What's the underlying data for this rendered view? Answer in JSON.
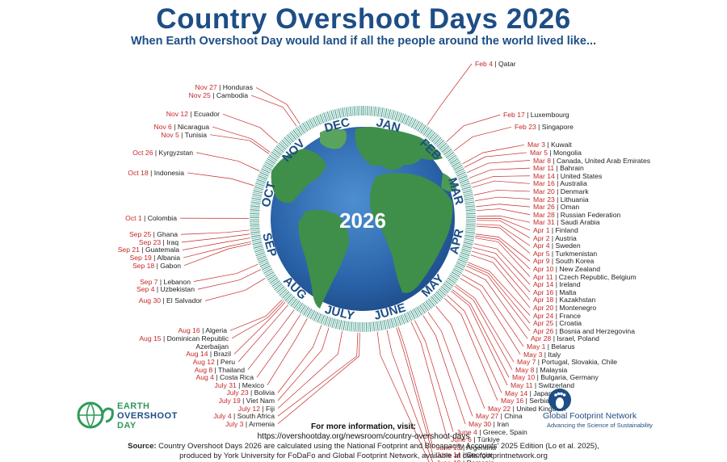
{
  "title": "Country Overshoot Days 2026",
  "subtitle": "When Earth Overshoot Day would land if all the people around the world lived like...",
  "center_year": "2026",
  "months": [
    "JAN",
    "FEB",
    "MAR",
    "APR",
    "MAY",
    "JUNE",
    "JULY",
    "AUG",
    "SEP",
    "OCT",
    "NOV",
    "DEC"
  ],
  "countries": [
    {
      "date": "Feb 4",
      "name": "Qatar",
      "day": 35
    },
    {
      "date": "Feb 17",
      "name": "Luxembourg",
      "day": 48
    },
    {
      "date": "Feb 23",
      "name": "Singapore",
      "day": 54
    },
    {
      "date": "Mar 3",
      "name": "Kuwait",
      "day": 62
    },
    {
      "date": "Mar 5",
      "name": "Mongolia",
      "day": 64
    },
    {
      "date": "Mar 8",
      "name": "Canada, United Arab Emirates",
      "day": 67
    },
    {
      "date": "Mar 11",
      "name": "Bahrain",
      "day": 70
    },
    {
      "date": "Mar 14",
      "name": "United States",
      "day": 73
    },
    {
      "date": "Mar 16",
      "name": "Australia",
      "day": 75
    },
    {
      "date": "Mar 20",
      "name": "Denmark",
      "day": 79
    },
    {
      "date": "Mar 23",
      "name": "Lithuania",
      "day": 82
    },
    {
      "date": "Mar 26",
      "name": "Oman",
      "day": 85
    },
    {
      "date": "Mar 28",
      "name": "Russian Federation",
      "day": 87
    },
    {
      "date": "Mar 31",
      "name": "Saudi Arabia",
      "day": 90
    },
    {
      "date": "Apr 1",
      "name": "Finland",
      "day": 91
    },
    {
      "date": "Apr 2",
      "name": "Austria",
      "day": 92
    },
    {
      "date": "Apr 4",
      "name": "Sweden",
      "day": 94
    },
    {
      "date": "Apr 5",
      "name": "Turkmenistan",
      "day": 95
    },
    {
      "date": "Apr 9",
      "name": "South Korea",
      "day": 99
    },
    {
      "date": "Apr 10",
      "name": "New Zealand",
      "day": 100
    },
    {
      "date": "Apr 11",
      "name": "Czech Republic, Belgium",
      "day": 101
    },
    {
      "date": "Apr 14",
      "name": "Ireland",
      "day": 104
    },
    {
      "date": "Apr 16",
      "name": "Malta",
      "day": 106
    },
    {
      "date": "Apr 18",
      "name": "Kazakhstan",
      "day": 108
    },
    {
      "date": "Apr 20",
      "name": "Montenegro",
      "day": 110
    },
    {
      "date": "Apr 24",
      "name": "France",
      "day": 114
    },
    {
      "date": "Apr 25",
      "name": "Croatia",
      "day": 115
    },
    {
      "date": "Apr 26",
      "name": "Bosnia and Herzegovina",
      "day": 116
    },
    {
      "date": "Apr 28",
      "name": "Israel, Poland",
      "day": 118
    },
    {
      "date": "May 1",
      "name": "Belarus",
      "day": 121
    },
    {
      "date": "May 3",
      "name": "Italy",
      "day": 123
    },
    {
      "date": "May 7",
      "name": "Portugal, Slovakia, Chile",
      "day": 127
    },
    {
      "date": "May 8",
      "name": "Malaysia",
      "day": 128
    },
    {
      "date": "May 10",
      "name": "Bulgaria, Germany",
      "day": 130
    },
    {
      "date": "May 11",
      "name": "Switzerland",
      "day": 131
    },
    {
      "date": "May 14",
      "name": "Japan",
      "day": 134
    },
    {
      "date": "May 16",
      "name": "Serbia",
      "day": 136
    },
    {
      "date": "May 22",
      "name": "United Kingdom",
      "day": 142
    },
    {
      "date": "May 27",
      "name": "China",
      "day": 147
    },
    {
      "date": "May 30",
      "name": "Iran",
      "day": 150
    },
    {
      "date": "June 4",
      "name": "Greece, Spain",
      "day": 155
    },
    {
      "date": "June 6",
      "name": "Türkiye",
      "day": 157
    },
    {
      "date": "June 13",
      "name": "Argentina",
      "day": 164
    },
    {
      "date": "June 14",
      "name": "Georgia",
      "day": 165
    },
    {
      "date": "June 19",
      "name": "Romania",
      "day": 170
    },
    {
      "date": "June 24",
      "name": "Hungary",
      "day": 175
    },
    {
      "date": "July 3",
      "name": "Armenia",
      "day": 184
    },
    {
      "date": "July 4",
      "name": "South Africa",
      "day": 185
    },
    {
      "date": "July 12",
      "name": "Fiji",
      "day": 193
    },
    {
      "date": "July 19",
      "name": "Viet Nam",
      "day": 200
    },
    {
      "date": "July 23",
      "name": "Bolivia",
      "day": 204
    },
    {
      "date": "July 31",
      "name": "Mexico",
      "day": 212
    },
    {
      "date": "Aug 4",
      "name": "Costa Rica",
      "day": 216
    },
    {
      "date": "Aug 8",
      "name": "Thailand",
      "day": 220
    },
    {
      "date": "Aug 12",
      "name": "Peru",
      "day": 224
    },
    {
      "date": "Aug 14",
      "name": "Brazil",
      "day": 226
    },
    {
      "date": "Aug 15",
      "name": "Dominican Republic",
      "name2": "Azerbaijan",
      "day": 227
    },
    {
      "date": "Aug 16",
      "name": "Algeria",
      "day": 228
    },
    {
      "date": "Aug 30",
      "name": "El Salvador",
      "day": 242
    },
    {
      "date": "Sep 4",
      "name": "Uzbekistan",
      "day": 247
    },
    {
      "date": "Sep 7",
      "name": "Lebanon",
      "day": 250
    },
    {
      "date": "Sep 18",
      "name": "Gabon",
      "day": 261
    },
    {
      "date": "Sep 19",
      "name": "Albania",
      "day": 262
    },
    {
      "date": "Sep 21",
      "name": "Guatemala",
      "day": 264
    },
    {
      "date": "Sep 23",
      "name": "Iraq",
      "day": 266
    },
    {
      "date": "Sep 25",
      "name": "Ghana",
      "day": 268
    },
    {
      "date": "Oct 1",
      "name": "Colombia",
      "day": 274
    },
    {
      "date": "Oct 18",
      "name": "Indonesia",
      "day": 291
    },
    {
      "date": "Oct 26",
      "name": "Kyrgyzstan",
      "day": 299
    },
    {
      "date": "Nov 5",
      "name": "Tunisia",
      "day": 309
    },
    {
      "date": "Nov 6",
      "name": "Nicaragua",
      "day": 310
    },
    {
      "date": "Nov 12",
      "name": "Ecuador",
      "day": 316
    },
    {
      "date": "Nov 25",
      "name": "Cambodia",
      "day": 329
    },
    {
      "date": "Nov 27",
      "name": "Honduras",
      "day": 331
    }
  ],
  "logos": {
    "eod_line1": "EARTH",
    "eod_line2": "OVERSHOOT",
    "eod_line3": "DAY",
    "gfn_name": "Global Footprint Network",
    "gfn_tagline": "Advancing the Science of Sustainability"
  },
  "more_info": {
    "heading": "For more information, visit:",
    "url": "https://overshootday.org/newsroom/country-overshoot-days"
  },
  "source": {
    "label": "Source:",
    "line1": "Country Overshoot Days 2026 are calculated using the National Footprint and Biocapacity Accounts’ 2025 Edition (Lo et al. 2025),",
    "line2": "produced by York University for FoDaFo and Global Footprint Network, available at data.footprintnetwork.org"
  },
  "colors": {
    "title": "#1d4e86",
    "date_text": "#c62828",
    "leader_line": "#c62828",
    "ring_tick": "#4a9a8c",
    "ocean": "#2f6db3",
    "land": "#3f8f4a"
  }
}
